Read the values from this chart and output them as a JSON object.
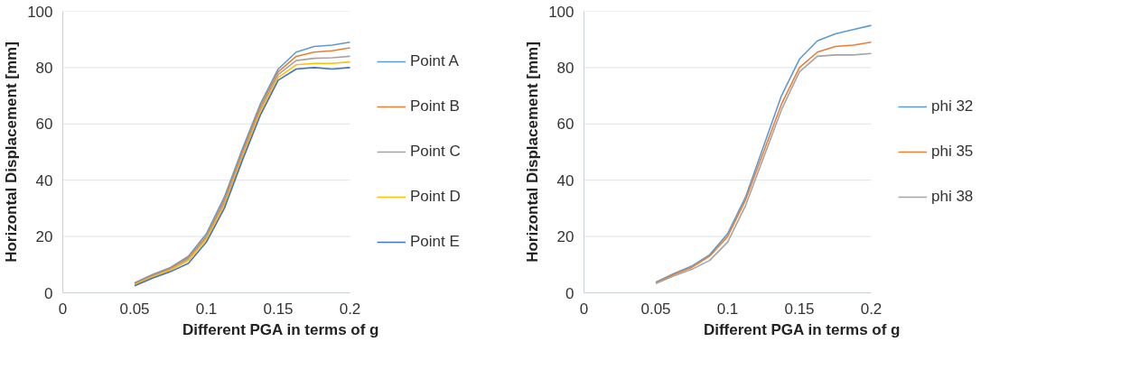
{
  "chart_data": [
    {
      "type": "line",
      "xlabel": "Different PGA in terms of g",
      "ylabel": "Horizontal Displacement [mm]",
      "x": [
        0.05,
        0.0625,
        0.075,
        0.0875,
        0.1,
        0.1125,
        0.125,
        0.1375,
        0.15,
        0.1625,
        0.175,
        0.1875,
        0.2
      ],
      "xlim": [
        0,
        0.2
      ],
      "xticks": [
        0,
        0.05,
        0.1,
        0.15,
        0.2
      ],
      "ylim": [
        0,
        100
      ],
      "yticks": [
        0,
        20,
        40,
        60,
        80,
        100
      ],
      "grid": "y",
      "legend": "right",
      "marker": "none",
      "line_style": "solid",
      "series": [
        {
          "name": "Point A",
          "color": "#5b9bd5",
          "values": [
            3.5,
            6.5,
            9,
            13,
            21,
            34,
            51,
            67,
            79.5,
            85.5,
            87.5,
            88,
            89
          ]
        },
        {
          "name": "Point B",
          "color": "#ed7d31",
          "values": [
            3.3,
            6.2,
            8.7,
            12.5,
            20,
            33,
            50,
            66,
            78.5,
            84,
            85.5,
            86,
            87
          ]
        },
        {
          "name": "Point C",
          "color": "#a5a5a5",
          "values": [
            3,
            5.9,
            8.3,
            12,
            19.5,
            32,
            49,
            65,
            77.5,
            82.5,
            83.3,
            83.5,
            84
          ]
        },
        {
          "name": "Point D",
          "color": "#ffc000",
          "values": [
            2.8,
            5.6,
            8,
            11.5,
            19,
            31,
            48,
            64,
            76.5,
            81,
            81.5,
            81.5,
            82
          ]
        },
        {
          "name": "Point E",
          "color": "#4472c4",
          "values": [
            2.5,
            5.2,
            7.5,
            10.5,
            18,
            30,
            47,
            63,
            75.5,
            79.5,
            80,
            79.5,
            80
          ]
        }
      ]
    },
    {
      "type": "line",
      "xlabel": "Different PGA in terms of g",
      "ylabel": "Horizontal Displacement [mm]",
      "x": [
        0.05,
        0.0625,
        0.075,
        0.0875,
        0.1,
        0.1125,
        0.125,
        0.1375,
        0.15,
        0.1625,
        0.175,
        0.1875,
        0.2
      ],
      "xlim": [
        0,
        0.2
      ],
      "xticks": [
        0,
        0.05,
        0.1,
        0.15,
        0.2
      ],
      "ylim": [
        0,
        100
      ],
      "yticks": [
        0,
        20,
        40,
        60,
        80,
        100
      ],
      "grid": "y",
      "legend": "right",
      "marker": "none",
      "line_style": "solid",
      "series": [
        {
          "name": "phi 32",
          "color": "#5b9bd5",
          "values": [
            3.8,
            6.8,
            9.5,
            13.5,
            21,
            34,
            52,
            70,
            83,
            89.5,
            92,
            93.5,
            95
          ]
        },
        {
          "name": "phi 35",
          "color": "#ed7d31",
          "values": [
            3.5,
            6.5,
            9,
            13,
            20,
            33,
            50,
            67,
            80,
            85.5,
            87.5,
            88,
            89
          ]
        },
        {
          "name": "phi 38",
          "color": "#a5a5a5",
          "values": [
            3.3,
            6,
            8.3,
            11.5,
            18,
            31,
            48,
            65,
            78.5,
            84,
            84.5,
            84.5,
            85
          ]
        }
      ]
    }
  ]
}
